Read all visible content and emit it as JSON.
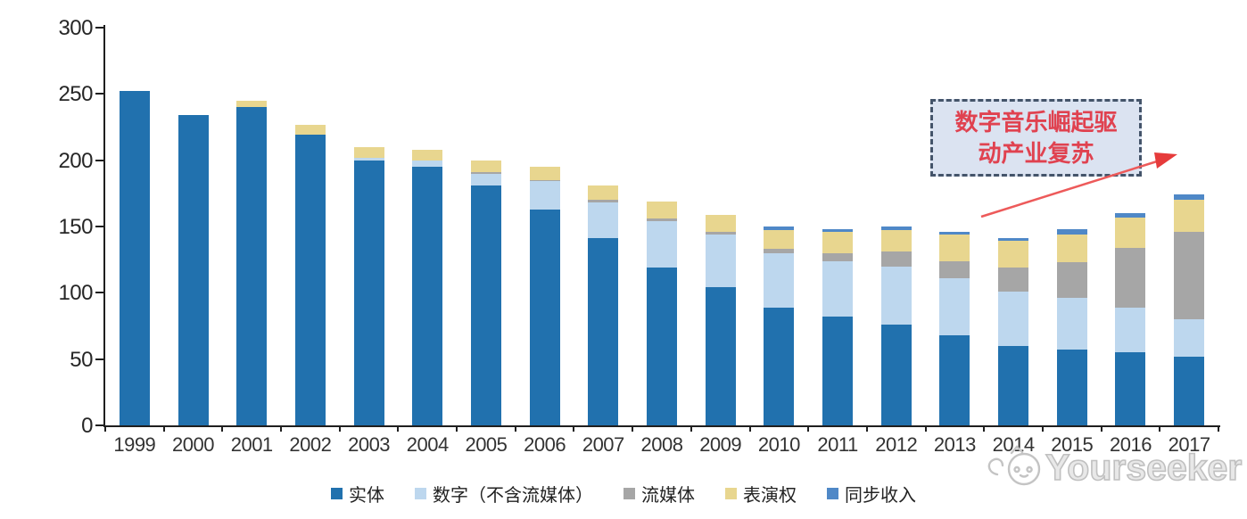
{
  "chart_data": {
    "type": "bar",
    "stacked": true,
    "title": "",
    "xlabel": "",
    "ylabel": "",
    "ylim": [
      0,
      300
    ],
    "yticks": [
      0,
      50,
      100,
      150,
      200,
      250,
      300
    ],
    "grid": false,
    "legend_position": "bottom",
    "categories": [
      "1999",
      "2000",
      "2001",
      "2002",
      "2003",
      "2004",
      "2005",
      "2006",
      "2007",
      "2008",
      "2009",
      "2010",
      "2011",
      "2012",
      "2013",
      "2014",
      "2015",
      "2016",
      "2017"
    ],
    "series": [
      {
        "name": "实体",
        "color": "#2171AE",
        "values": [
          252,
          234,
          240,
          219,
          200,
          195,
          181,
          163,
          141,
          119,
          104,
          89,
          82,
          76,
          68,
          60,
          57,
          55,
          52
        ]
      },
      {
        "name": "数字（不含流媒体）",
        "color": "#BDD7EE",
        "values": [
          0,
          0,
          0,
          0,
          2,
          5,
          9,
          21,
          27,
          35,
          40,
          41,
          42,
          44,
          43,
          41,
          39,
          34,
          28
        ]
      },
      {
        "name": "流媒体",
        "color": "#A6A6A6",
        "values": [
          0,
          0,
          0,
          0,
          0,
          0,
          1,
          1,
          2,
          2,
          2,
          3,
          6,
          11,
          13,
          18,
          27,
          45,
          66
        ]
      },
      {
        "name": "表演权",
        "color": "#E8D68F",
        "values": [
          0,
          0,
          5,
          8,
          8,
          8,
          9,
          10,
          11,
          13,
          13,
          14,
          16,
          16,
          20,
          20,
          21,
          23,
          24
        ]
      },
      {
        "name": "同步收入",
        "color": "#4F88C7",
        "values": [
          0,
          0,
          0,
          0,
          0,
          0,
          0,
          0,
          0,
          0,
          0,
          3,
          2,
          3,
          2,
          2,
          4,
          3,
          4
        ]
      }
    ]
  },
  "annotation": {
    "line1": "数字音乐崛起驱",
    "line2": "动产业复苏",
    "box_fill": "#DBE3F1",
    "box_border": "#44546A",
    "text_color": "#E04250",
    "arrow_color": "#ED4B52"
  },
  "watermark": {
    "brand": "Yourseeker",
    "logo_icon": "cat-logo-icon",
    "color": "#C0C0C0"
  }
}
